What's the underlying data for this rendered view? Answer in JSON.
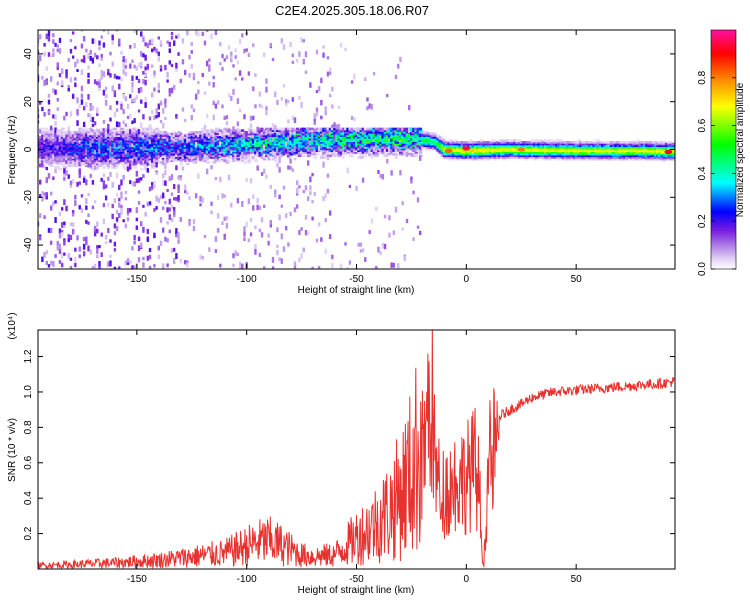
{
  "title": "C2E4.2025.305.18.06.R07",
  "chart_data": [
    {
      "type": "heatmap",
      "name": "spectrogram",
      "xlabel": "Height of straight line (km)",
      "ylabel": "Frequency (Hz)",
      "xlim": [
        -195,
        95
      ],
      "ylim": [
        -50,
        50
      ],
      "xticks": [
        -150,
        -100,
        -50,
        0,
        50
      ],
      "xtick_labels": [
        "-150",
        "-100",
        "-50",
        "0",
        "50"
      ],
      "yticks": [
        -40,
        -20,
        0,
        20,
        40
      ],
      "ytick_labels": [
        "-40",
        "-20",
        "0",
        "20",
        "40"
      ],
      "colorbar": {
        "label": "Normalized spectral amplitude",
        "range": [
          0,
          1
        ],
        "ticks": [
          0.0,
          0.2,
          0.4,
          0.6,
          0.8
        ],
        "tick_labels": [
          "0.0",
          "0.2",
          "0.4",
          "0.6",
          "0.8"
        ],
        "colormap": [
          "#ffffff",
          "#d9c2f2",
          "#8a2be2",
          "#0000ff",
          "#00ffff",
          "#00ff00",
          "#ffff00",
          "#ff7f00",
          "#ff0000",
          "#ff00aa"
        ]
      },
      "ridge": {
        "x": [
          -185,
          -170,
          -150,
          -130,
          -110,
          -90,
          -70,
          -50,
          -30,
          -18,
          -14,
          -10,
          0,
          20,
          50,
          80,
          93
        ],
        "center_hz": [
          0.5,
          0.5,
          0.8,
          1.0,
          1.6,
          2.6,
          3.8,
          4.2,
          4.6,
          3.8,
          3.0,
          0.0,
          -0.5,
          0.0,
          -0.5,
          -0.5,
          -0.8
        ],
        "peak_amplitude": [
          0.22,
          0.3,
          0.32,
          0.34,
          0.4,
          0.44,
          0.46,
          0.48,
          0.54,
          0.5,
          0.45,
          0.68,
          0.74,
          0.7,
          0.68,
          0.68,
          0.7
        ]
      },
      "hotspots": [
        {
          "x": 0,
          "hz": 0.5,
          "amplitude": 0.95
        },
        {
          "x": 92,
          "hz": -1.0,
          "amplitude": 0.92
        },
        {
          "x": -8,
          "hz": -0.5,
          "amplitude": 0.82
        },
        {
          "x": 25,
          "hz": 0.0,
          "amplitude": 0.8
        }
      ]
    },
    {
      "type": "line",
      "name": "snr",
      "xlabel": "Height of straight line (km)",
      "ylabel": "SNR (10 * v/v)",
      "scale_label": "(x10⁴)",
      "xlim": [
        -195,
        95
      ],
      "ylim": [
        0,
        1.35
      ],
      "xticks": [
        -150,
        -100,
        -50,
        0,
        50
      ],
      "xtick_labels": [
        "-150",
        "-100",
        "-50",
        "0",
        "50"
      ],
      "yticks": [
        0.2,
        0.4,
        0.6,
        0.8,
        1.0,
        1.2
      ],
      "ytick_labels": [
        "0.2",
        "0.4",
        "0.6",
        "0.8",
        "1.0",
        "1.2"
      ],
      "series": [
        {
          "name": "SNR",
          "color": "#e8322f",
          "x": [
            -195,
            -180,
            -160,
            -140,
            -125,
            -110,
            -100,
            -95,
            -90,
            -85,
            -80,
            -75,
            -70,
            -60,
            -55,
            -50,
            -45,
            -40,
            -35,
            -30,
            -25,
            -22,
            -20,
            -18,
            -17,
            -16,
            -15,
            -14,
            -12,
            -10,
            -5,
            0,
            4,
            6,
            7,
            8,
            9,
            10,
            12,
            15,
            20,
            25,
            30,
            40,
            50,
            60,
            70,
            80,
            90,
            95
          ],
          "y": [
            0.02,
            0.025,
            0.035,
            0.05,
            0.07,
            0.09,
            0.13,
            0.15,
            0.16,
            0.14,
            0.11,
            0.08,
            0.07,
            0.08,
            0.13,
            0.18,
            0.22,
            0.27,
            0.33,
            0.42,
            0.55,
            0.66,
            0.8,
            0.95,
            1.2,
            1.3,
            0.95,
            0.7,
            0.55,
            0.55,
            0.62,
            0.65,
            0.72,
            0.55,
            0.15,
            0.02,
            0.4,
            0.7,
            0.8,
            0.86,
            0.9,
            0.93,
            0.97,
            1.0,
            1.01,
            1.02,
            1.03,
            1.04,
            1.05,
            1.06
          ]
        }
      ]
    }
  ]
}
